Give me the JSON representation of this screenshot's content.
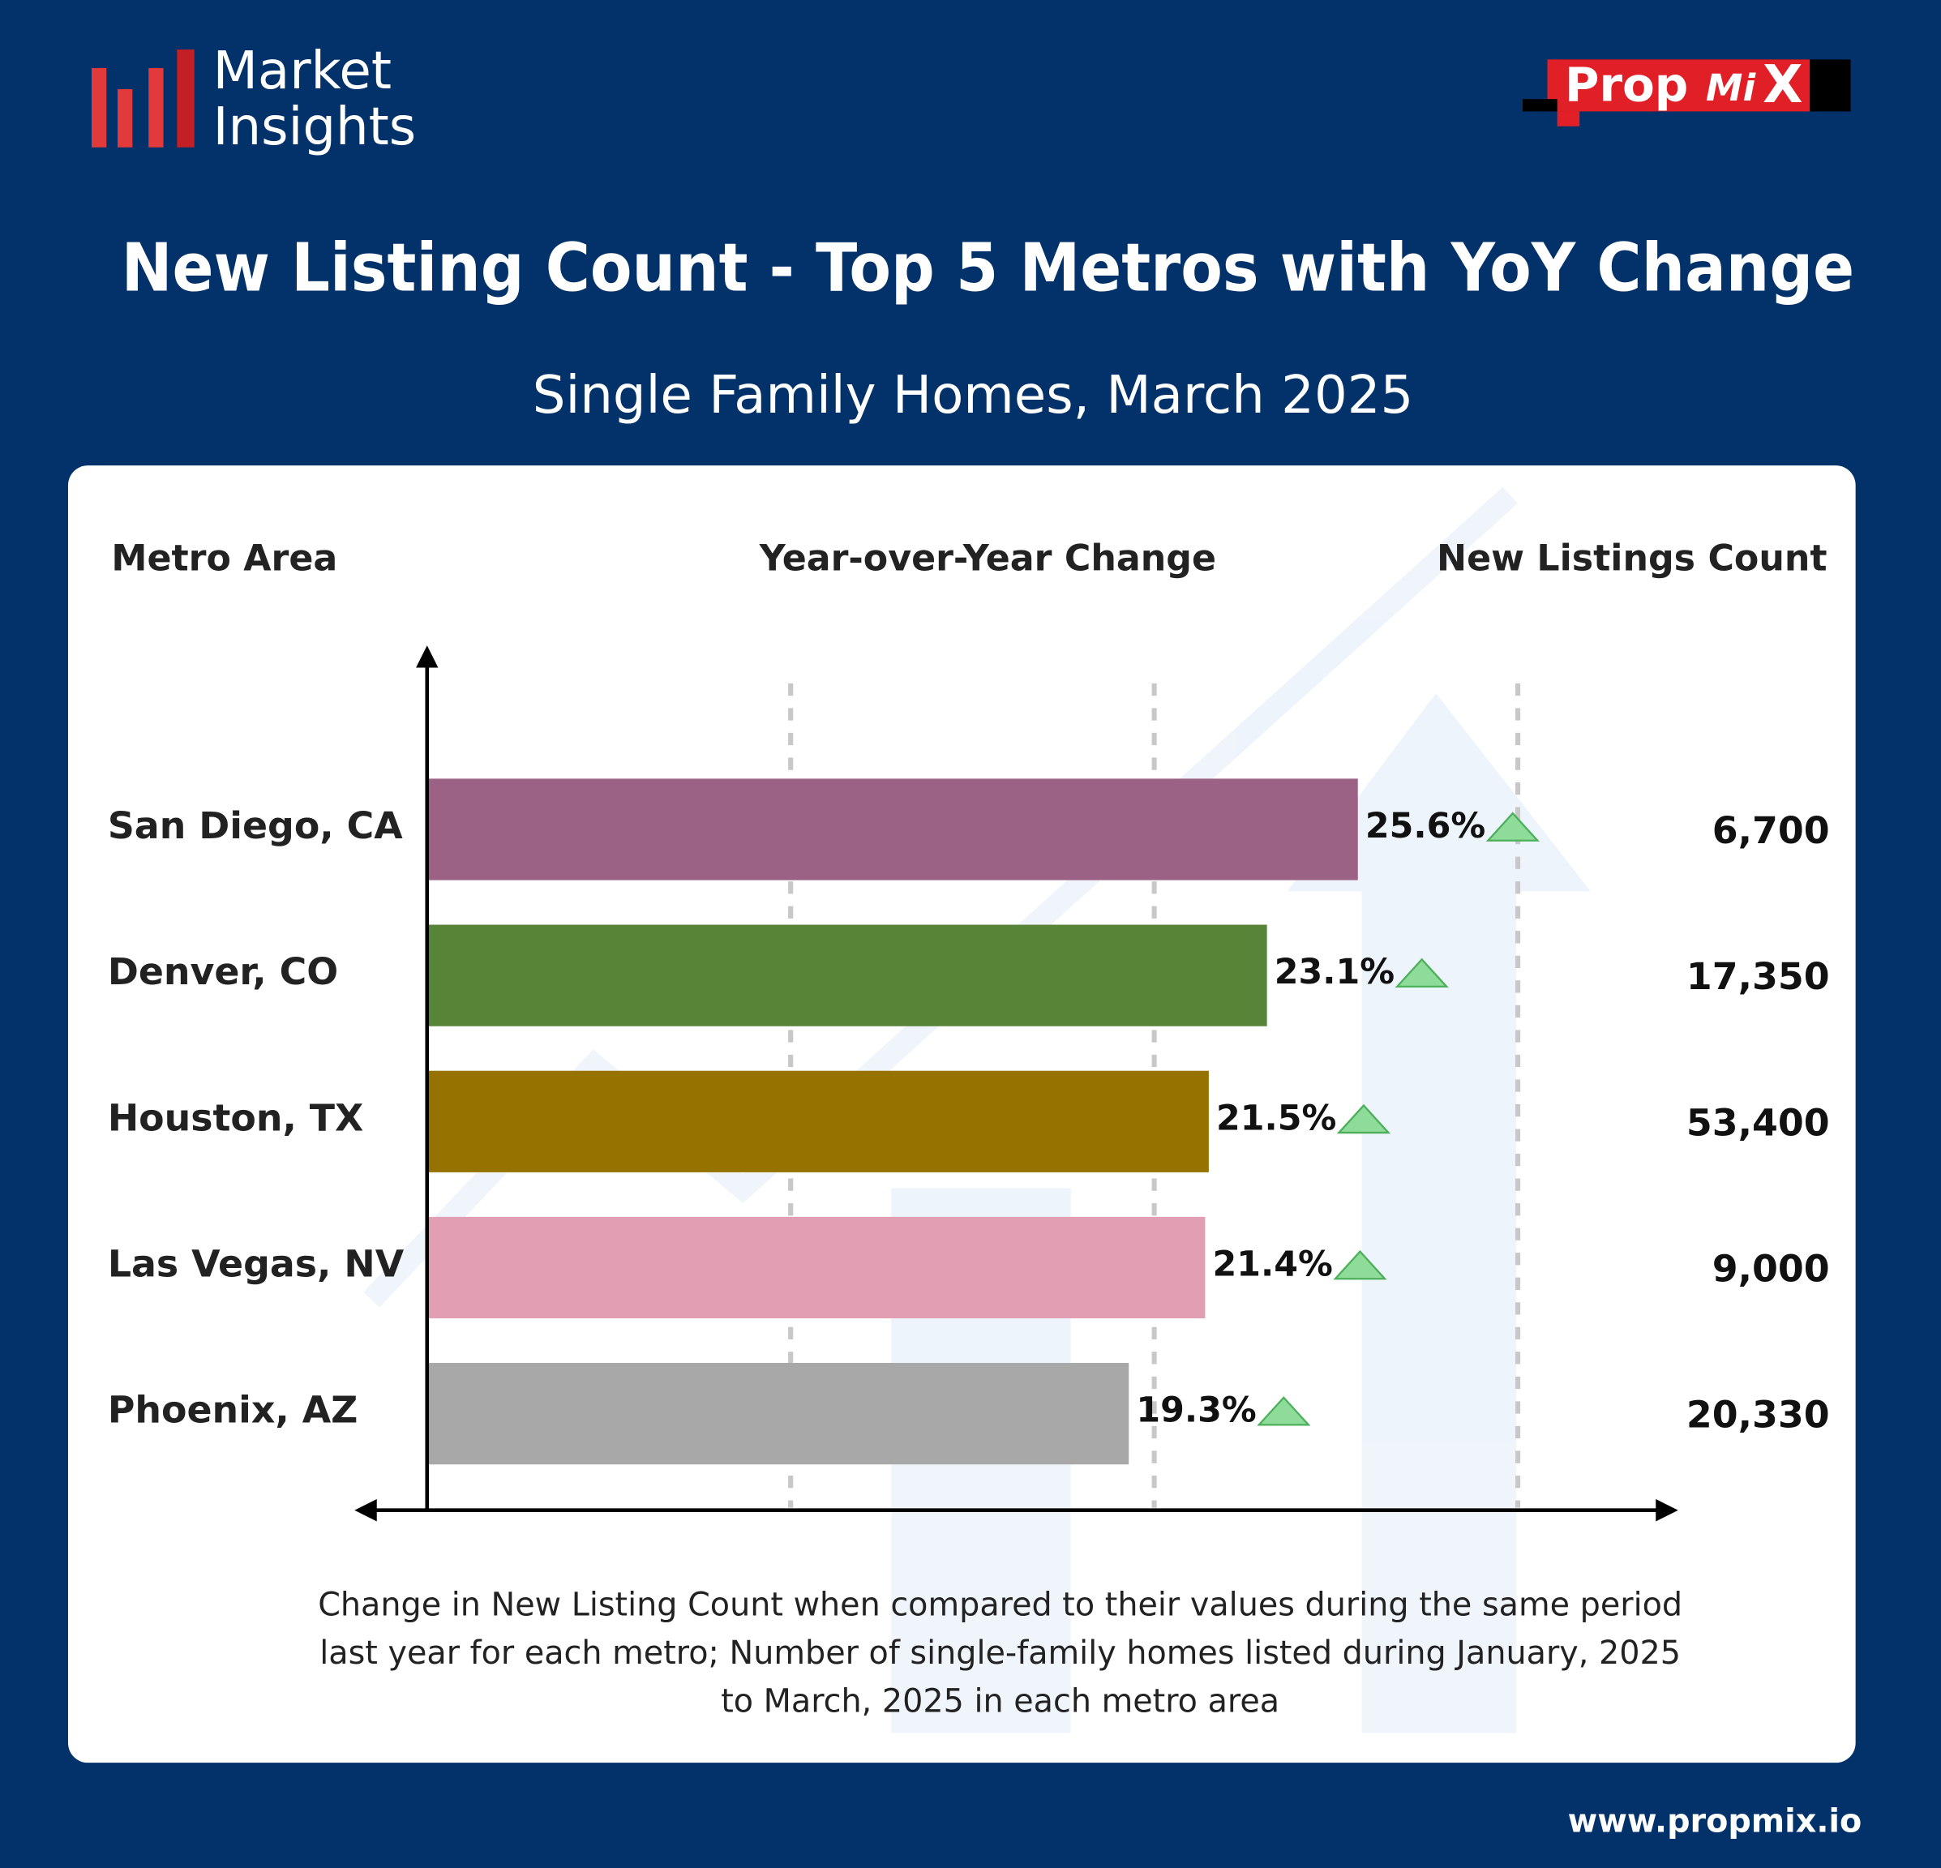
{
  "header": {
    "brand_lines": [
      "Market",
      "Insights"
    ],
    "logo": [
      "Prop",
      "Mi",
      "X"
    ]
  },
  "chart_data": {
    "type": "bar",
    "orientation": "horizontal",
    "title": "New Listing Count - Top 5 Metros with YoY Change",
    "subtitle": "Single Family Homes, March 2025",
    "column_headers": {
      "metro": "Metro Area",
      "change": "Year-over-Year Change",
      "count": "New Listings Count"
    },
    "categories": [
      "San Diego, CA",
      "Denver, CO",
      "Houston, TX",
      "Las Vegas, NV",
      "Phoenix, AZ"
    ],
    "values": [
      25.6,
      23.1,
      21.5,
      21.4,
      19.3
    ],
    "value_labels": [
      "25.6%",
      "23.1%",
      "21.5%",
      "21.4%",
      "19.3%"
    ],
    "colors": [
      "#9b6285",
      "#578437",
      "#967300",
      "#e29eb2",
      "#a8a8a8"
    ],
    "xlim": [
      0,
      35
    ],
    "grid_lines": [
      10,
      20,
      30
    ],
    "counts": [
      6700,
      17350,
      53400,
      9000,
      20330
    ],
    "count_labels": [
      "6,700",
      "17,350",
      "53,400",
      "9,000",
      "20,330"
    ],
    "note_lines": [
      "Change in New Listing Count when compared to their values during the same period",
      "last year for each metro;  Number of single-family homes listed during January, 2025",
      "to March, 2025 in each metro area"
    ]
  },
  "footer": {
    "url": "www.propmix.io"
  }
}
